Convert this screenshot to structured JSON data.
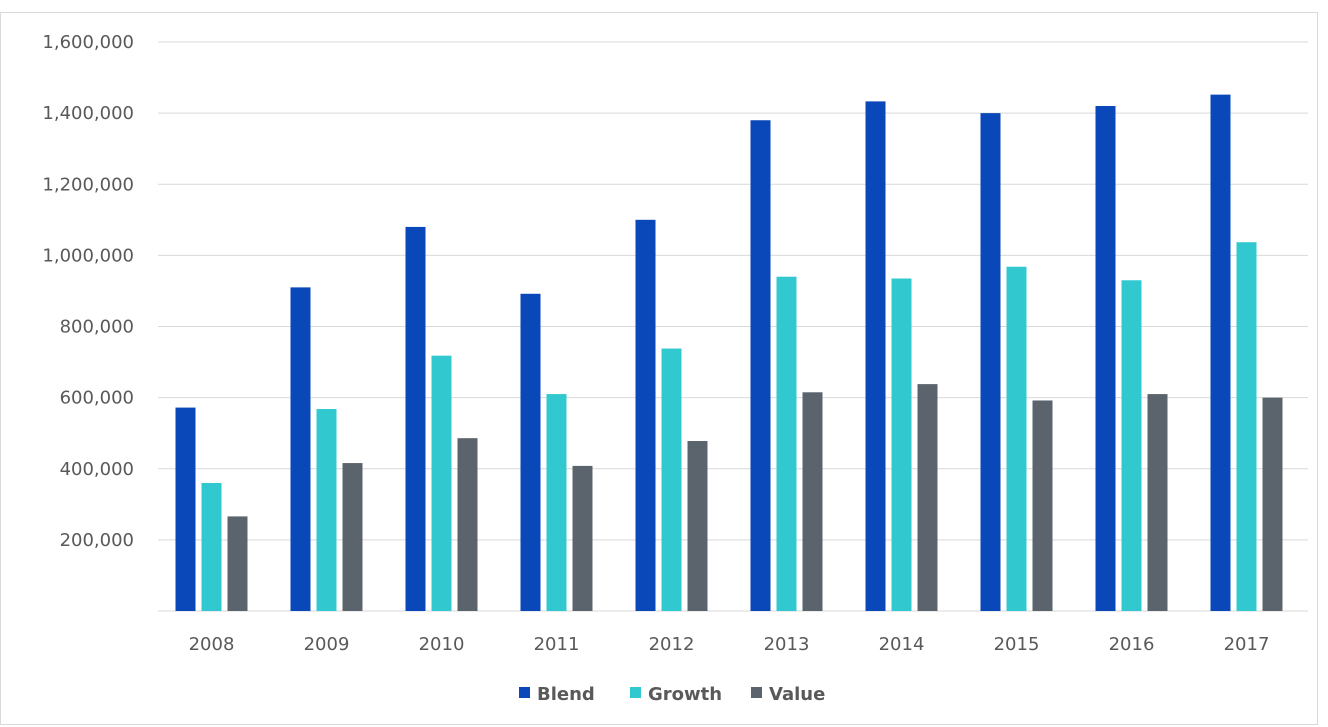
{
  "chart_data": {
    "type": "bar",
    "title": "",
    "xlabel": "",
    "ylabel": "",
    "categories": [
      "2008",
      "2009",
      "2010",
      "2011",
      "2012",
      "2013",
      "2014",
      "2015",
      "2016",
      "2017"
    ],
    "series": [
      {
        "name": "Blend",
        "color": "#0a47b8",
        "values": [
          572000,
          910000,
          1080000,
          892000,
          1100000,
          1380000,
          1433000,
          1400000,
          1420000,
          1452000
        ]
      },
      {
        "name": "Growth",
        "color": "#31c9cf",
        "values": [
          360000,
          568000,
          718000,
          610000,
          738000,
          940000,
          935000,
          968000,
          930000,
          1037000
        ]
      },
      {
        "name": "Value",
        "color": "#5b646c",
        "values": [
          266000,
          416000,
          486000,
          408000,
          478000,
          615000,
          638000,
          592000,
          610000,
          600000
        ]
      }
    ],
    "ylim": [
      0,
      1600000
    ],
    "yticks": [
      "1,600,000",
      "1,400,000",
      "1,200,000",
      "1,000,000",
      "800,000",
      "600,000",
      "400,000",
      "200,000"
    ],
    "ytick_values": [
      1600000,
      1400000,
      1200000,
      1000000,
      800000,
      600000,
      400000,
      200000
    ],
    "grid": true,
    "legend_position": "bottom-center"
  }
}
